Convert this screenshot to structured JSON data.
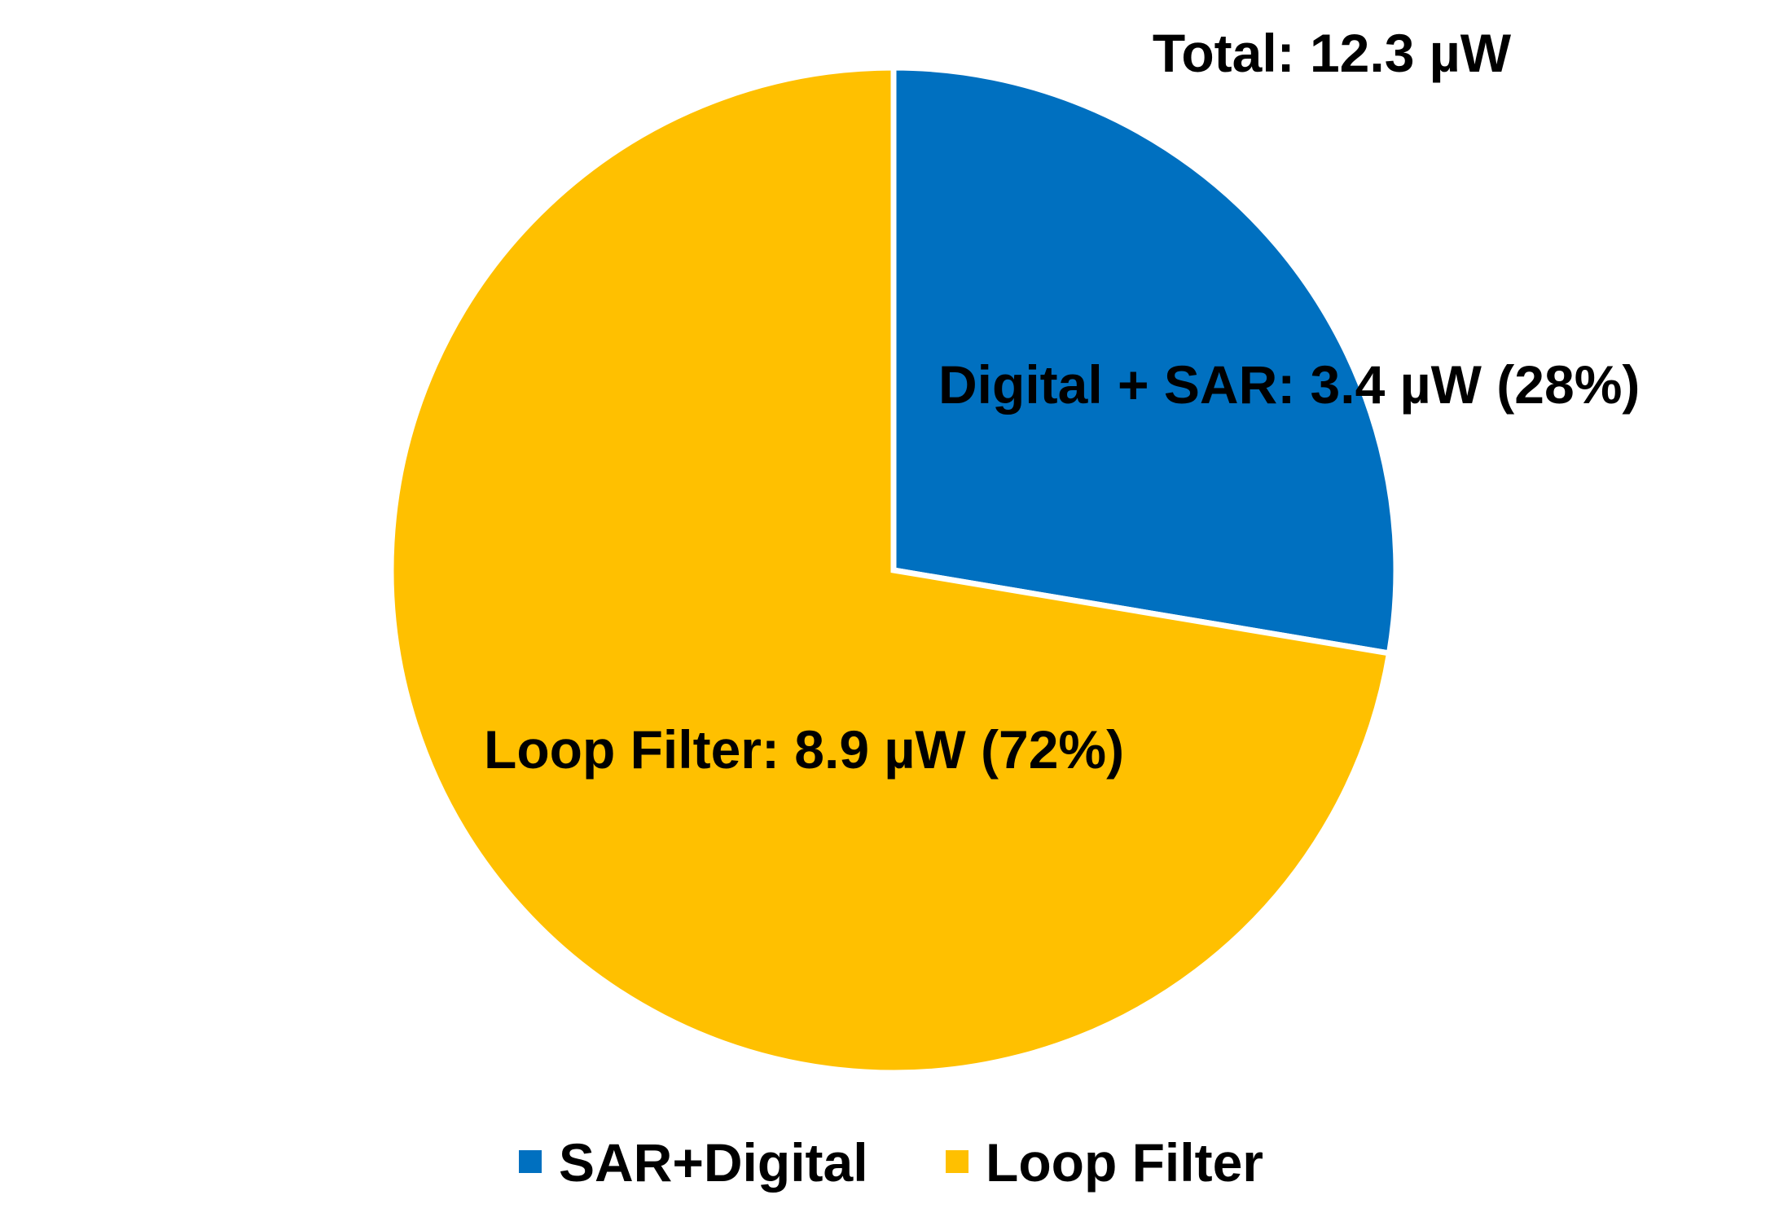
{
  "chart_data": {
    "type": "pie",
    "title": "Total: 12.3 µW",
    "series": [
      {
        "name": "SAR+Digital",
        "value": 3.4,
        "color": "#0070C0",
        "data_label": "Digital + SAR: 3.4 µW (28%)"
      },
      {
        "name": "Loop Filter",
        "value": 8.9,
        "color": "#FFC000",
        "data_label": "Loop Filter: 8.9 µW (72%)"
      }
    ],
    "legend": {
      "position": "bottom",
      "entries": [
        "SAR+Digital",
        "Loop Filter"
      ]
    }
  }
}
